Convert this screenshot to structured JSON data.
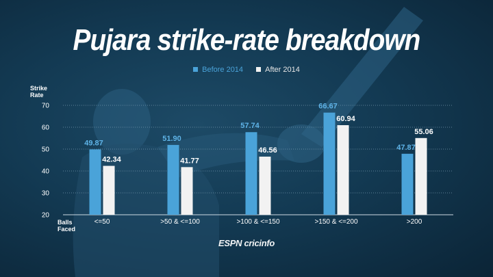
{
  "title": "Pujara strike-rate breakdown",
  "legend": {
    "before": "Before 2014",
    "after": "After 2014"
  },
  "colors": {
    "before": "#4aa3d9",
    "after": "#f2f2f2",
    "label_before": "#5fb4e8",
    "label_after": "#ffffff",
    "grid": "#7a9bb0"
  },
  "brand": "ESPN cricinfo",
  "chart_data": {
    "type": "bar",
    "ylabel": "Strike Rate",
    "xlabel": "Balls Faced",
    "categories": [
      "<=50",
      ">50 & <=100",
      ">100 & <=150",
      ">150 & <=200",
      ">200"
    ],
    "ylim": [
      20,
      70
    ],
    "yticks": [
      20,
      30,
      40,
      50,
      60,
      70
    ],
    "grid": true,
    "legend_position": "top-center",
    "series": [
      {
        "name": "Before 2014",
        "values": [
          49.87,
          51.9,
          57.74,
          66.67,
          47.87
        ],
        "labels": [
          "49.87",
          "51.90",
          "57.74",
          "66.67",
          "47.87"
        ]
      },
      {
        "name": "After 2014",
        "values": [
          42.34,
          41.77,
          46.56,
          60.94,
          55.06
        ],
        "labels": [
          "42.34",
          "41.77",
          "46.56",
          "60.94",
          "55.06"
        ]
      }
    ]
  }
}
